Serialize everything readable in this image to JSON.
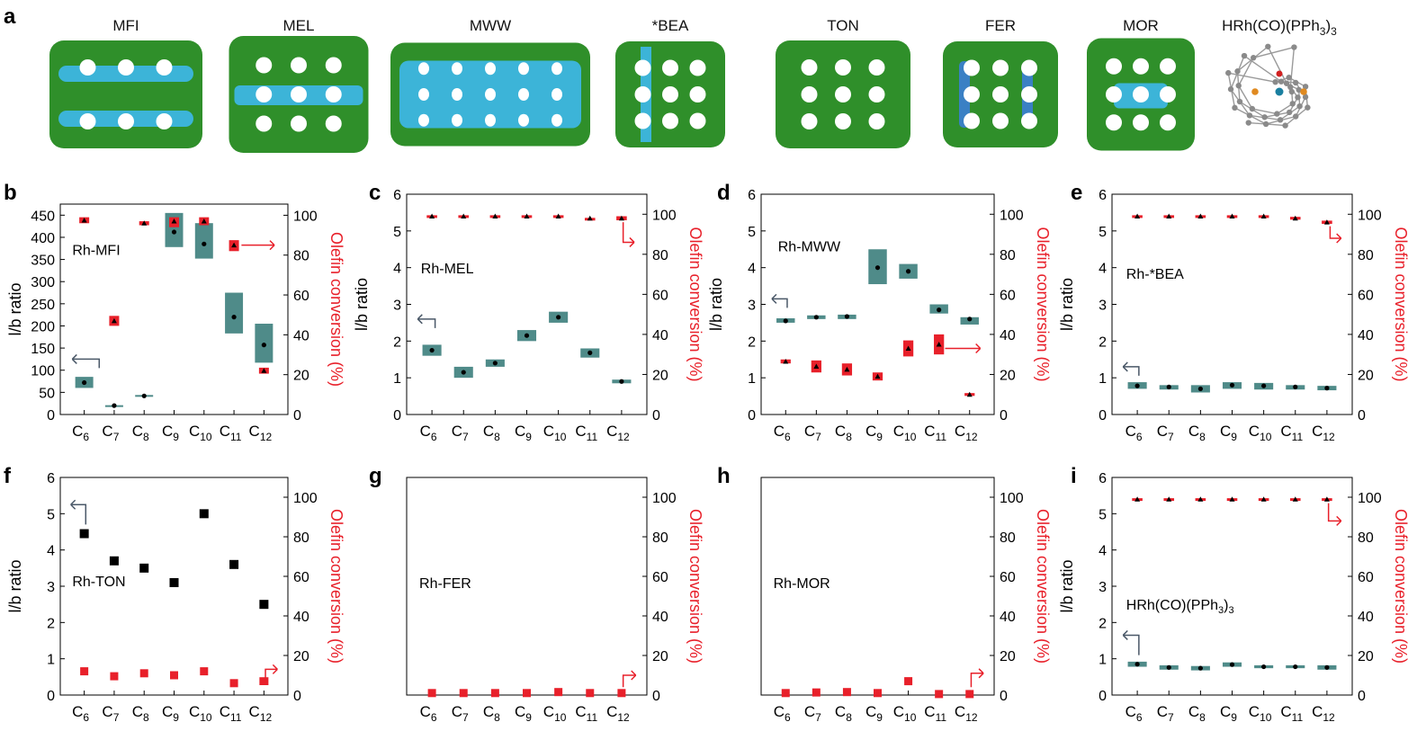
{
  "panel_labels": [
    "a",
    "b",
    "c",
    "d",
    "e",
    "f",
    "g",
    "h",
    "i"
  ],
  "frameworks": [
    {
      "name": "MFI"
    },
    {
      "name": "MEL"
    },
    {
      "name": "MWW"
    },
    {
      "name": "*BEA"
    },
    {
      "name": "TON"
    },
    {
      "name": "FER"
    },
    {
      "name": "MOR"
    },
    {
      "name": "HRh(CO)(PPh",
      "sub": "3",
      "tail": ")",
      "sub2": "3"
    }
  ],
  "colors": {
    "zeolite_green": "#2f8f2a",
    "pore_blue": "#3cb4d8",
    "box_teal": "#4f8b89",
    "conv_red": "#e8202a",
    "arrow_grey": "#4a5868",
    "axis": "#000000"
  },
  "chart_data": [
    {
      "id": "b",
      "type": "box",
      "title": "Rh-MFI",
      "categories": [
        "C6",
        "C7",
        "C8",
        "C9",
        "C10",
        "C11",
        "C12"
      ],
      "ylabel": "l/b ratio",
      "y2label": "Olefin conversion (%)",
      "ylim": [
        0,
        475
      ],
      "yticks": [
        0,
        50,
        100,
        150,
        200,
        250,
        300,
        350,
        400,
        450
      ],
      "y2lim": [
        0,
        105.6
      ],
      "y2ticks": [
        0,
        20,
        40,
        60,
        80,
        100
      ],
      "lb": [
        {
          "mean": 72,
          "low": 60,
          "high": 85
        },
        {
          "mean": 20,
          "low": 19,
          "high": 21
        },
        {
          "mean": 42,
          "low": 40,
          "high": 44
        },
        {
          "mean": 412,
          "low": 378,
          "high": 455
        },
        {
          "mean": 385,
          "low": 352,
          "high": 432
        },
        {
          "mean": 220,
          "low": 183,
          "high": 275
        },
        {
          "mean": 157,
          "low": 117,
          "high": 205
        }
      ],
      "conv": [
        {
          "mean": 97.5,
          "low": 96,
          "high": 99
        },
        {
          "mean": 47,
          "low": 44.5,
          "high": 49.5
        },
        {
          "mean": 96,
          "low": 95,
          "high": 97
        },
        {
          "mean": 97,
          "low": 94,
          "high": 99
        },
        {
          "mean": 97,
          "low": 95,
          "high": 99
        },
        {
          "mean": 85,
          "low": 82,
          "high": 87.5
        },
        {
          "mean": 22,
          "low": 20.5,
          "high": 23.5
        }
      ],
      "arrow_left": {
        "x": 0.5,
        "y": 125,
        "to_x": -0.4
      },
      "arrow_right": {
        "x": 5.25,
        "y": 85,
        "to_x": 6.35
      },
      "label_pos": {
        "x": -0.4,
        "y": 360
      }
    },
    {
      "id": "c",
      "type": "box",
      "title": "Rh-MEL",
      "categories": [
        "C6",
        "C7",
        "C8",
        "C9",
        "C10",
        "C11",
        "C12"
      ],
      "ylabel": "l/b ratio",
      "y2label": "Olefin conversion (%)",
      "ylim": [
        0,
        6
      ],
      "yticks": [
        0,
        1,
        2,
        3,
        4,
        5,
        6
      ],
      "y2lim": [
        0,
        110
      ],
      "y2ticks": [
        0,
        20,
        40,
        60,
        80,
        100
      ],
      "lb": [
        {
          "mean": 1.75,
          "low": 1.6,
          "high": 1.9
        },
        {
          "mean": 1.15,
          "low": 1.0,
          "high": 1.3
        },
        {
          "mean": 1.4,
          "low": 1.3,
          "high": 1.5
        },
        {
          "mean": 2.15,
          "low": 2.0,
          "high": 2.3
        },
        {
          "mean": 2.65,
          "low": 2.5,
          "high": 2.8
        },
        {
          "mean": 1.68,
          "low": 1.55,
          "high": 1.8
        },
        {
          "mean": 0.9,
          "low": 0.85,
          "high": 0.95
        }
      ],
      "conv": [
        {
          "mean": 99,
          "low": 98.5,
          "high": 99.5
        },
        {
          "mean": 99,
          "low": 98.5,
          "high": 99.5
        },
        {
          "mean": 99,
          "low": 98.5,
          "high": 99.5
        },
        {
          "mean": 99,
          "low": 98.5,
          "high": 99.5
        },
        {
          "mean": 99,
          "low": 98.5,
          "high": 99.5
        },
        {
          "mean": 98,
          "low": 97.8,
          "high": 98.2
        },
        {
          "mean": 98,
          "low": 97,
          "high": 99
        }
      ],
      "arrow_left": {
        "x": 0.1,
        "y": 2.6,
        "to_x": -0.45
      },
      "arrow_right": {
        "x": 6.05,
        "y": 96,
        "to_x": 6.4,
        "down_to": 86
      },
      "label_pos": {
        "x": -0.35,
        "y": 3.85
      }
    },
    {
      "id": "d",
      "type": "box",
      "title": "Rh-MWW",
      "categories": [
        "C6",
        "C7",
        "C8",
        "C9",
        "C10",
        "C11",
        "C12"
      ],
      "ylabel": "l/b ratio",
      "y2label": "Olefin conversion (%)",
      "ylim": [
        0,
        6
      ],
      "yticks": [
        0,
        1,
        2,
        3,
        4,
        5,
        6
      ],
      "y2lim": [
        0,
        110
      ],
      "y2ticks": [
        0,
        20,
        40,
        60,
        80,
        100
      ],
      "lb": [
        {
          "mean": 2.55,
          "low": 2.5,
          "high": 2.62
        },
        {
          "mean": 2.65,
          "low": 2.6,
          "high": 2.7
        },
        {
          "mean": 2.67,
          "low": 2.6,
          "high": 2.72
        },
        {
          "mean": 4.0,
          "low": 3.55,
          "high": 4.5
        },
        {
          "mean": 3.9,
          "low": 3.7,
          "high": 4.1
        },
        {
          "mean": 2.85,
          "low": 2.75,
          "high": 3.0
        },
        {
          "mean": 2.6,
          "low": 2.45,
          "high": 2.65
        }
      ],
      "conv": [
        {
          "mean": 26.5,
          "low": 25.5,
          "high": 27.5
        },
        {
          "mean": 24,
          "low": 21,
          "high": 27
        },
        {
          "mean": 22.5,
          "low": 19.5,
          "high": 25.5
        },
        {
          "mean": 19,
          "low": 17,
          "high": 21
        },
        {
          "mean": 33,
          "low": 29,
          "high": 37
        },
        {
          "mean": 35,
          "low": 30,
          "high": 40
        },
        {
          "mean": 10,
          "low": 9.3,
          "high": 10.7
        }
      ],
      "arrow_left": {
        "x": 0.05,
        "y": 3.15,
        "to_x": -0.45
      },
      "arrow_right": {
        "x": 5.2,
        "y": 33,
        "to_x": 6.35
      },
      "label_pos": {
        "x": -0.25,
        "y": 4.45
      }
    },
    {
      "id": "e",
      "type": "box",
      "title": "Rh-*BEA",
      "categories": [
        "C6",
        "C7",
        "C8",
        "C9",
        "C10",
        "C11",
        "C12"
      ],
      "ylabel": "l/b ratio",
      "y2label": "Olefin conversion (%)",
      "ylim": [
        0,
        6
      ],
      "yticks": [
        0,
        1,
        2,
        3,
        4,
        5,
        6
      ],
      "y2lim": [
        0,
        110
      ],
      "y2ticks": [
        0,
        20,
        40,
        60,
        80,
        100
      ],
      "lb": [
        {
          "mean": 0.78,
          "low": 0.7,
          "high": 0.88
        },
        {
          "mean": 0.75,
          "low": 0.68,
          "high": 0.8
        },
        {
          "mean": 0.7,
          "low": 0.6,
          "high": 0.8
        },
        {
          "mean": 0.8,
          "low": 0.7,
          "high": 0.88
        },
        {
          "mean": 0.78,
          "low": 0.68,
          "high": 0.86
        },
        {
          "mean": 0.75,
          "low": 0.68,
          "high": 0.8
        },
        {
          "mean": 0.72,
          "low": 0.66,
          "high": 0.78
        }
      ],
      "conv": [
        {
          "mean": 99,
          "low": 98.5,
          "high": 99.5
        },
        {
          "mean": 99,
          "low": 98.5,
          "high": 99.5
        },
        {
          "mean": 99,
          "low": 98.5,
          "high": 99.5
        },
        {
          "mean": 99,
          "low": 98.5,
          "high": 99.5
        },
        {
          "mean": 99,
          "low": 98.5,
          "high": 99.5
        },
        {
          "mean": 98,
          "low": 97.3,
          "high": 98.7
        },
        {
          "mean": 96,
          "low": 95.2,
          "high": 96.8
        }
      ],
      "arrow_left": {
        "x": 0.05,
        "y": 1.3,
        "to_x": -0.45
      },
      "arrow_right": {
        "x": 6.1,
        "y": 94,
        "to_x": 6.45,
        "down_to": 88
      },
      "label_pos": {
        "x": -0.35,
        "y": 3.7
      }
    },
    {
      "id": "f",
      "type": "scatter",
      "title": "Rh-TON",
      "categories": [
        "C6",
        "C7",
        "C8",
        "C9",
        "C10",
        "C11",
        "C12"
      ],
      "ylabel": "l/b ratio",
      "y2label": "Olefin conversion (%)",
      "ylim": [
        0,
        6
      ],
      "yticks": [
        0,
        1,
        2,
        3,
        4,
        5,
        6
      ],
      "y2lim": [
        0,
        110
      ],
      "y2ticks": [
        0,
        20,
        40,
        60,
        80,
        100
      ],
      "lb": [
        {
          "mean": 4.45
        },
        {
          "mean": 3.7
        },
        {
          "mean": 3.5
        },
        {
          "mean": 3.1
        },
        {
          "mean": 5.0
        },
        {
          "mean": 3.6
        },
        {
          "mean": 2.5
        }
      ],
      "conv": [
        {
          "mean": 12
        },
        {
          "mean": 9.5
        },
        {
          "mean": 11
        },
        {
          "mean": 10
        },
        {
          "mean": 12
        },
        {
          "mean": 6
        },
        {
          "mean": 7,
          "low": 5,
          "high": 9
        }
      ],
      "arrow_left": {
        "x": 0.05,
        "y": 4.7,
        "to_x": -0.45,
        "up_to": 5.25
      },
      "arrow_right": {
        "x": 6.05,
        "y": 7,
        "to_x": 6.45,
        "up_to": 13
      },
      "label_pos": {
        "x": -0.4,
        "y": 3.0
      }
    },
    {
      "id": "g",
      "type": "scatter",
      "title": "Rh-FER",
      "categories": [
        "C6",
        "C7",
        "C8",
        "C9",
        "C10",
        "C11",
        "C12"
      ],
      "ylabel": "",
      "y2label": "Olefin conversion (%)",
      "ylim": null,
      "yticks": [],
      "y2lim": [
        0,
        110
      ],
      "y2ticks": [
        0,
        20,
        40,
        60,
        80,
        100
      ],
      "lb": [],
      "conv": [
        {
          "mean": 1
        },
        {
          "mean": 1
        },
        {
          "mean": 1
        },
        {
          "mean": 1
        },
        {
          "mean": 1.5
        },
        {
          "mean": 1
        },
        {
          "mean": 1
        }
      ],
      "arrow_left": null,
      "arrow_right": {
        "x": 6.05,
        "y": 4,
        "to_x": 6.45,
        "up_to": 10
      },
      "label_pos": {
        "x": -0.4,
        "y": 54
      }
    },
    {
      "id": "h",
      "type": "scatter",
      "title": "Rh-MOR",
      "categories": [
        "C6",
        "C7",
        "C8",
        "C9",
        "C10",
        "C11",
        "C12"
      ],
      "ylabel": "",
      "y2label": "Olefin conversion (%)",
      "ylim": null,
      "yticks": [],
      "y2lim": [
        0,
        110
      ],
      "y2ticks": [
        0,
        20,
        40,
        60,
        80,
        100
      ],
      "lb": [],
      "conv": [
        {
          "mean": 1
        },
        {
          "mean": 1.3
        },
        {
          "mean": 1.5
        },
        {
          "mean": 1
        },
        {
          "mean": 7
        },
        {
          "mean": 0.5
        },
        {
          "mean": 0.5
        }
      ],
      "arrow_left": null,
      "arrow_right": {
        "x": 6.05,
        "y": 4,
        "to_x": 6.45,
        "up_to": 11
      },
      "label_pos": {
        "x": -0.4,
        "y": 54
      }
    },
    {
      "id": "i",
      "type": "box",
      "title": "HRh(CO)(PPh",
      "title_sub": "3",
      "title_tail": ")",
      "title_sub2": "3",
      "categories": [
        "C6",
        "C7",
        "C8",
        "C9",
        "C10",
        "C11",
        "C12"
      ],
      "ylabel": "l/b ratio",
      "y2label": "Olefin conversion (%)",
      "ylim": [
        0,
        6
      ],
      "yticks": [
        0,
        1,
        2,
        3,
        4,
        5,
        6
      ],
      "y2lim": [
        0,
        110
      ],
      "y2ticks": [
        0,
        20,
        40,
        60,
        80,
        100
      ],
      "lb": [
        {
          "mean": 0.85,
          "low": 0.78,
          "high": 0.92
        },
        {
          "mean": 0.76,
          "low": 0.7,
          "high": 0.82
        },
        {
          "mean": 0.74,
          "low": 0.68,
          "high": 0.8
        },
        {
          "mean": 0.84,
          "low": 0.78,
          "high": 0.9
        },
        {
          "mean": 0.78,
          "low": 0.74,
          "high": 0.82
        },
        {
          "mean": 0.78,
          "low": 0.74,
          "high": 0.82
        },
        {
          "mean": 0.76,
          "low": 0.7,
          "high": 0.82
        }
      ],
      "conv": [
        {
          "mean": 99,
          "low": 98.5,
          "high": 99.5
        },
        {
          "mean": 99,
          "low": 98.5,
          "high": 99.5
        },
        {
          "mean": 99,
          "low": 98.5,
          "high": 99.5
        },
        {
          "mean": 99,
          "low": 98.5,
          "high": 99.5
        },
        {
          "mean": 99,
          "low": 98.5,
          "high": 99.5
        },
        {
          "mean": 99,
          "low": 98.5,
          "high": 99.5
        },
        {
          "mean": 99,
          "low": 98.5,
          "high": 99.5
        }
      ],
      "arrow_left": {
        "x": 0.05,
        "y": 1.1,
        "to_x": -0.45,
        "up_to": 1.65
      },
      "arrow_right": {
        "x": 6.05,
        "y": 97,
        "to_x": 6.45,
        "down_to": 88
      },
      "label_pos": {
        "x": -0.35,
        "y": 2.35
      }
    }
  ]
}
